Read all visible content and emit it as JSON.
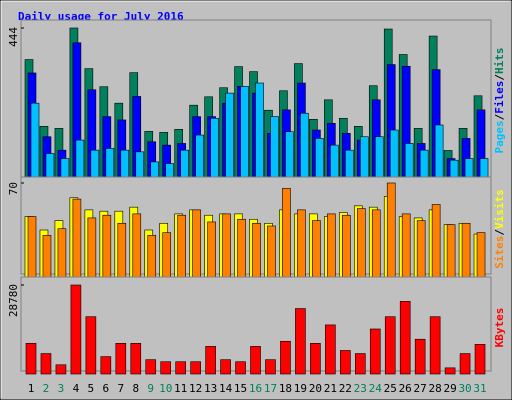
{
  "title": "Daily usage for July 2016",
  "legend_separator": "/",
  "chart_data": [
    {
      "type": "bar",
      "ylim": [
        0,
        444
      ],
      "yticks": [
        444
      ],
      "series": [
        {
          "name": "Hits",
          "color": "#00805c",
          "values": [
            350,
            151,
            145,
            444,
            323,
            269,
            220,
            311,
            136,
            133,
            142,
            214,
            239,
            266,
            329,
            314,
            199,
            257,
            338,
            172,
            230,
            175,
            151,
            272,
            441,
            365,
            145,
            420,
            79,
            145,
            242
          ]
        },
        {
          "name": "Files",
          "color": "#0000ff",
          "values": [
            310,
            120,
            80,
            400,
            260,
            180,
            170,
            240,
            105,
            95,
            100,
            180,
            180,
            220,
            270,
            250,
            130,
            200,
            280,
            140,
            160,
            130,
            110,
            230,
            335,
            330,
            100,
            320,
            55,
            115,
            200
          ]
        },
        {
          "name": "Pages",
          "color": "#00c0ff",
          "values": [
            220,
            70,
            55,
            110,
            80,
            85,
            80,
            75,
            45,
            40,
            80,
            125,
            175,
            250,
            270,
            280,
            180,
            135,
            190,
            115,
            95,
            80,
            120,
            120,
            140,
            100,
            80,
            155,
            50,
            55,
            55
          ]
        }
      ]
    },
    {
      "type": "bar",
      "ylim": [
        0,
        70
      ],
      "yticks": [
        70
      ],
      "series": [
        {
          "name": "Visits",
          "color": "#ffff00",
          "values": [
            45,
            35,
            42,
            59,
            50,
            49,
            49,
            52,
            35,
            40,
            47,
            50,
            46,
            47,
            47,
            43,
            40,
            50,
            47,
            47,
            45,
            48,
            53,
            52,
            60,
            45,
            44,
            50,
            39,
            40,
            32
          ]
        },
        {
          "name": "Sites",
          "color": "#ff8000",
          "values": [
            45,
            31,
            36,
            58,
            44,
            46,
            40,
            47,
            31,
            33,
            46,
            50,
            41,
            47,
            43,
            40,
            38,
            66,
            50,
            42,
            47,
            46,
            51,
            50,
            70,
            47,
            42,
            54,
            39,
            40,
            33
          ]
        }
      ]
    },
    {
      "type": "bar",
      "ylim": [
        0,
        28780
      ],
      "yticks": [
        28780
      ],
      "categories": [
        "1",
        "2",
        "3",
        "4",
        "5",
        "6",
        "7",
        "8",
        "9",
        "10",
        "11",
        "12",
        "13",
        "14",
        "15",
        "16",
        "17",
        "18",
        "19",
        "20",
        "21",
        "22",
        "23",
        "24",
        "25",
        "26",
        "27",
        "28",
        "29",
        "30",
        "31"
      ],
      "label_colors": [
        "#000000",
        "#00805c",
        "#00805c",
        "#000000",
        "#000000",
        "#000000",
        "#000000",
        "#000000",
        "#00805c",
        "#00805c",
        "#000000",
        "#000000",
        "#000000",
        "#000000",
        "#000000",
        "#00805c",
        "#00805c",
        "#000000",
        "#000000",
        "#000000",
        "#000000",
        "#000000",
        "#00805c",
        "#00805c",
        "#000000",
        "#000000",
        "#000000",
        "#000000",
        "#000000",
        "#00805c",
        "#00805c"
      ],
      "series": [
        {
          "name": "KBytes",
          "color": "#ff0000",
          "values": [
            9924,
            6616,
            2977,
            28780,
            18525,
            5624,
            9924,
            9924,
            4631,
            3970,
            3970,
            3970,
            8932,
            4631,
            3970,
            8932,
            4631,
            10586,
            21171,
            9924,
            15878,
            7609,
            6616,
            14555,
            18525,
            23487,
            11247,
            18525,
            1985,
            6616,
            9593
          ]
        }
      ]
    }
  ]
}
